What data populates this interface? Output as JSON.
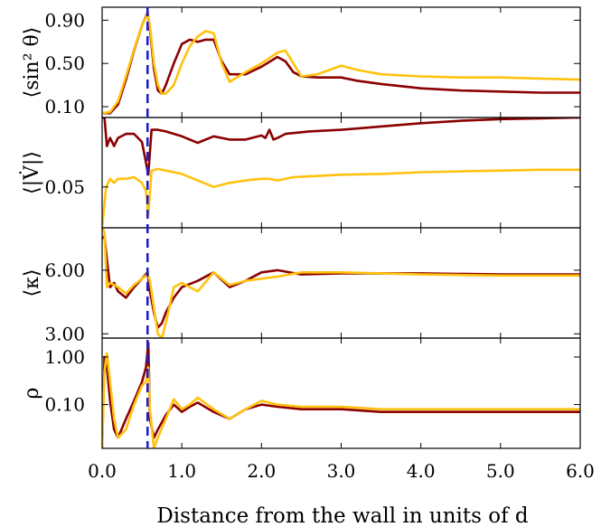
{
  "figure": {
    "xlabel": "Distance from the wall in units of d",
    "x_ticks": [
      "0.0",
      "1.0",
      "2.0",
      "3.0",
      "4.0",
      "5.0",
      "6.0"
    ],
    "colors": {
      "dark_red": "#8b0000",
      "gold": "#ffc20e",
      "marker_blue": "#1f1fc8"
    },
    "marker_line_x": 0.57
  },
  "chart_data": [
    {
      "type": "line",
      "ylabel": "⟨sin² θ⟩",
      "y_ticks": [
        "0.90",
        "0.50",
        "0.10"
      ],
      "ylim": [
        0.0,
        1.02
      ],
      "y_tick_values": [
        0.9,
        0.5,
        0.1
      ],
      "xlim": [
        0,
        6
      ],
      "series": [
        {
          "color": "#8b0000",
          "x": [
            0.0,
            0.1,
            0.2,
            0.3,
            0.4,
            0.5,
            0.57,
            0.6,
            0.65,
            0.7,
            0.75,
            0.8,
            0.9,
            1.0,
            1.1,
            1.2,
            1.3,
            1.4,
            1.5,
            1.6,
            1.8,
            2.0,
            2.2,
            2.3,
            2.4,
            2.5,
            2.7,
            3.0,
            3.2,
            3.5,
            4.0,
            4.5,
            5.0,
            5.5,
            6.0
          ],
          "values": [
            0.04,
            0.04,
            0.12,
            0.35,
            0.62,
            0.85,
            0.97,
            0.82,
            0.45,
            0.25,
            0.22,
            0.3,
            0.5,
            0.68,
            0.72,
            0.7,
            0.72,
            0.72,
            0.52,
            0.4,
            0.4,
            0.47,
            0.56,
            0.52,
            0.42,
            0.38,
            0.37,
            0.37,
            0.34,
            0.31,
            0.27,
            0.25,
            0.24,
            0.23,
            0.23
          ]
        },
        {
          "color": "#ffc20e",
          "x": [
            0.0,
            0.1,
            0.2,
            0.3,
            0.4,
            0.5,
            0.57,
            0.6,
            0.65,
            0.7,
            0.75,
            0.8,
            0.9,
            1.0,
            1.1,
            1.2,
            1.3,
            1.4,
            1.5,
            1.6,
            1.8,
            2.0,
            2.2,
            2.3,
            2.4,
            2.5,
            2.7,
            3.0,
            3.2,
            3.5,
            4.0,
            4.5,
            5.0,
            5.5,
            6.0
          ],
          "values": [
            0.04,
            0.05,
            0.15,
            0.38,
            0.63,
            0.85,
            0.96,
            0.85,
            0.5,
            0.3,
            0.22,
            0.22,
            0.3,
            0.5,
            0.66,
            0.75,
            0.8,
            0.78,
            0.5,
            0.33,
            0.42,
            0.5,
            0.6,
            0.62,
            0.5,
            0.38,
            0.4,
            0.48,
            0.44,
            0.4,
            0.38,
            0.37,
            0.37,
            0.36,
            0.35
          ]
        }
      ]
    },
    {
      "type": "line",
      "ylabel": "⟨|V̇|⟩",
      "y_ticks": [
        "0.05"
      ],
      "ylim": [
        0.0,
        0.135
      ],
      "y_tick_values": [
        0.05
      ],
      "xlim": [
        0,
        6
      ],
      "series": [
        {
          "color": "#8b0000",
          "x": [
            0.0,
            0.03,
            0.06,
            0.1,
            0.15,
            0.2,
            0.3,
            0.4,
            0.5,
            0.55,
            0.58,
            0.62,
            0.7,
            0.8,
            1.0,
            1.2,
            1.4,
            1.6,
            1.8,
            2.0,
            2.05,
            2.1,
            2.15,
            2.2,
            2.3,
            2.6,
            3.0,
            3.5,
            4.0,
            4.5,
            5.0,
            5.5,
            6.0
          ],
          "values": [
            0.135,
            0.135,
            0.1,
            0.11,
            0.1,
            0.11,
            0.115,
            0.115,
            0.105,
            0.08,
            0.065,
            0.12,
            0.12,
            0.118,
            0.112,
            0.104,
            0.112,
            0.108,
            0.108,
            0.113,
            0.11,
            0.12,
            0.108,
            0.11,
            0.115,
            0.118,
            0.12,
            0.124,
            0.128,
            0.131,
            0.133,
            0.134,
            0.135
          ]
        },
        {
          "color": "#ffc20e",
          "x": [
            0.0,
            0.05,
            0.1,
            0.15,
            0.2,
            0.3,
            0.4,
            0.5,
            0.55,
            0.58,
            0.62,
            0.7,
            0.8,
            1.0,
            1.2,
            1.4,
            1.6,
            1.8,
            2.0,
            2.1,
            2.2,
            2.4,
            2.6,
            3.0,
            3.5,
            4.0,
            4.5,
            5.0,
            5.5,
            6.0
          ],
          "values": [
            0.0,
            0.05,
            0.06,
            0.055,
            0.06,
            0.06,
            0.062,
            0.055,
            0.045,
            0.015,
            0.07,
            0.072,
            0.07,
            0.066,
            0.058,
            0.05,
            0.055,
            0.058,
            0.06,
            0.06,
            0.058,
            0.062,
            0.063,
            0.065,
            0.066,
            0.068,
            0.069,
            0.07,
            0.071,
            0.071
          ]
        }
      ]
    },
    {
      "type": "line",
      "ylabel": "⟨κ⟩",
      "y_ticks": [
        "6.00",
        "3.00"
      ],
      "ylim": [
        2.8,
        8.0
      ],
      "y_tick_values": [
        6.0,
        3.0
      ],
      "xlim": [
        0,
        6
      ],
      "series": [
        {
          "color": "#8b0000",
          "x": [
            0.0,
            0.03,
            0.06,
            0.1,
            0.15,
            0.2,
            0.3,
            0.4,
            0.5,
            0.57,
            0.6,
            0.65,
            0.7,
            0.75,
            0.8,
            0.9,
            1.0,
            1.2,
            1.4,
            1.6,
            1.8,
            2.0,
            2.2,
            2.5,
            3.0,
            3.5,
            4.0,
            5.0,
            6.0
          ],
          "values": [
            7.5,
            7.6,
            6.5,
            5.2,
            5.4,
            5.0,
            4.7,
            5.2,
            5.6,
            5.9,
            5.0,
            4.0,
            3.3,
            3.5,
            4.0,
            4.7,
            5.2,
            5.5,
            5.9,
            5.2,
            5.5,
            5.9,
            6.0,
            5.8,
            5.85,
            5.85,
            5.85,
            5.8,
            5.8
          ]
        },
        {
          "color": "#ffc20e",
          "x": [
            0.0,
            0.03,
            0.06,
            0.1,
            0.15,
            0.2,
            0.3,
            0.4,
            0.5,
            0.57,
            0.6,
            0.65,
            0.7,
            0.75,
            0.8,
            0.9,
            1.0,
            1.2,
            1.4,
            1.6,
            1.8,
            2.0,
            2.2,
            2.5,
            3.0,
            3.5,
            4.0,
            5.0,
            6.0
          ],
          "values": [
            8.0,
            7.8,
            5.2,
            5.4,
            5.3,
            5.2,
            4.9,
            5.3,
            5.6,
            5.8,
            5.5,
            4.2,
            3.0,
            2.8,
            3.5,
            5.2,
            5.4,
            5.0,
            5.9,
            5.3,
            5.5,
            5.6,
            5.7,
            5.9,
            5.9,
            5.85,
            5.8,
            5.75,
            5.75
          ]
        }
      ]
    },
    {
      "type": "line",
      "ylabel": "ρ",
      "y_ticks": [
        "1.00",
        "0.10"
      ],
      "yscale": "log",
      "ylim": [
        0.012,
        2.5
      ],
      "y_tick_values": [
        1.0,
        0.1
      ],
      "xlim": [
        0,
        6
      ],
      "series": [
        {
          "color": "#8b0000",
          "x": [
            0.0,
            0.03,
            0.06,
            0.1,
            0.15,
            0.2,
            0.3,
            0.4,
            0.5,
            0.55,
            0.58,
            0.6,
            0.65,
            0.7,
            0.8,
            0.9,
            1.0,
            1.1,
            1.2,
            1.4,
            1.6,
            1.8,
            2.0,
            2.2,
            2.5,
            3.0,
            3.5,
            4.0,
            5.0,
            6.0
          ],
          "values": [
            0.01,
            1.0,
            0.6,
            0.12,
            0.03,
            0.02,
            0.05,
            0.12,
            0.3,
            0.6,
            2.0,
            0.05,
            0.02,
            0.03,
            0.06,
            0.1,
            0.07,
            0.09,
            0.11,
            0.07,
            0.05,
            0.08,
            0.1,
            0.09,
            0.08,
            0.08,
            0.07,
            0.07,
            0.07,
            0.07
          ]
        },
        {
          "color": "#ffc20e",
          "x": [
            0.0,
            0.03,
            0.06,
            0.1,
            0.15,
            0.2,
            0.3,
            0.4,
            0.5,
            0.55,
            0.58,
            0.6,
            0.65,
            0.7,
            0.8,
            0.9,
            1.0,
            1.1,
            1.2,
            1.4,
            1.6,
            1.8,
            2.0,
            2.2,
            2.5,
            3.0,
            3.5,
            4.0,
            5.0,
            6.0
          ],
          "values": [
            0.01,
            0.5,
            1.2,
            0.3,
            0.05,
            0.02,
            0.03,
            0.1,
            0.25,
            0.3,
            0.6,
            0.08,
            0.01,
            0.02,
            0.05,
            0.13,
            0.08,
            0.1,
            0.14,
            0.08,
            0.05,
            0.08,
            0.12,
            0.1,
            0.09,
            0.09,
            0.08,
            0.08,
            0.08,
            0.08
          ]
        }
      ]
    }
  ]
}
